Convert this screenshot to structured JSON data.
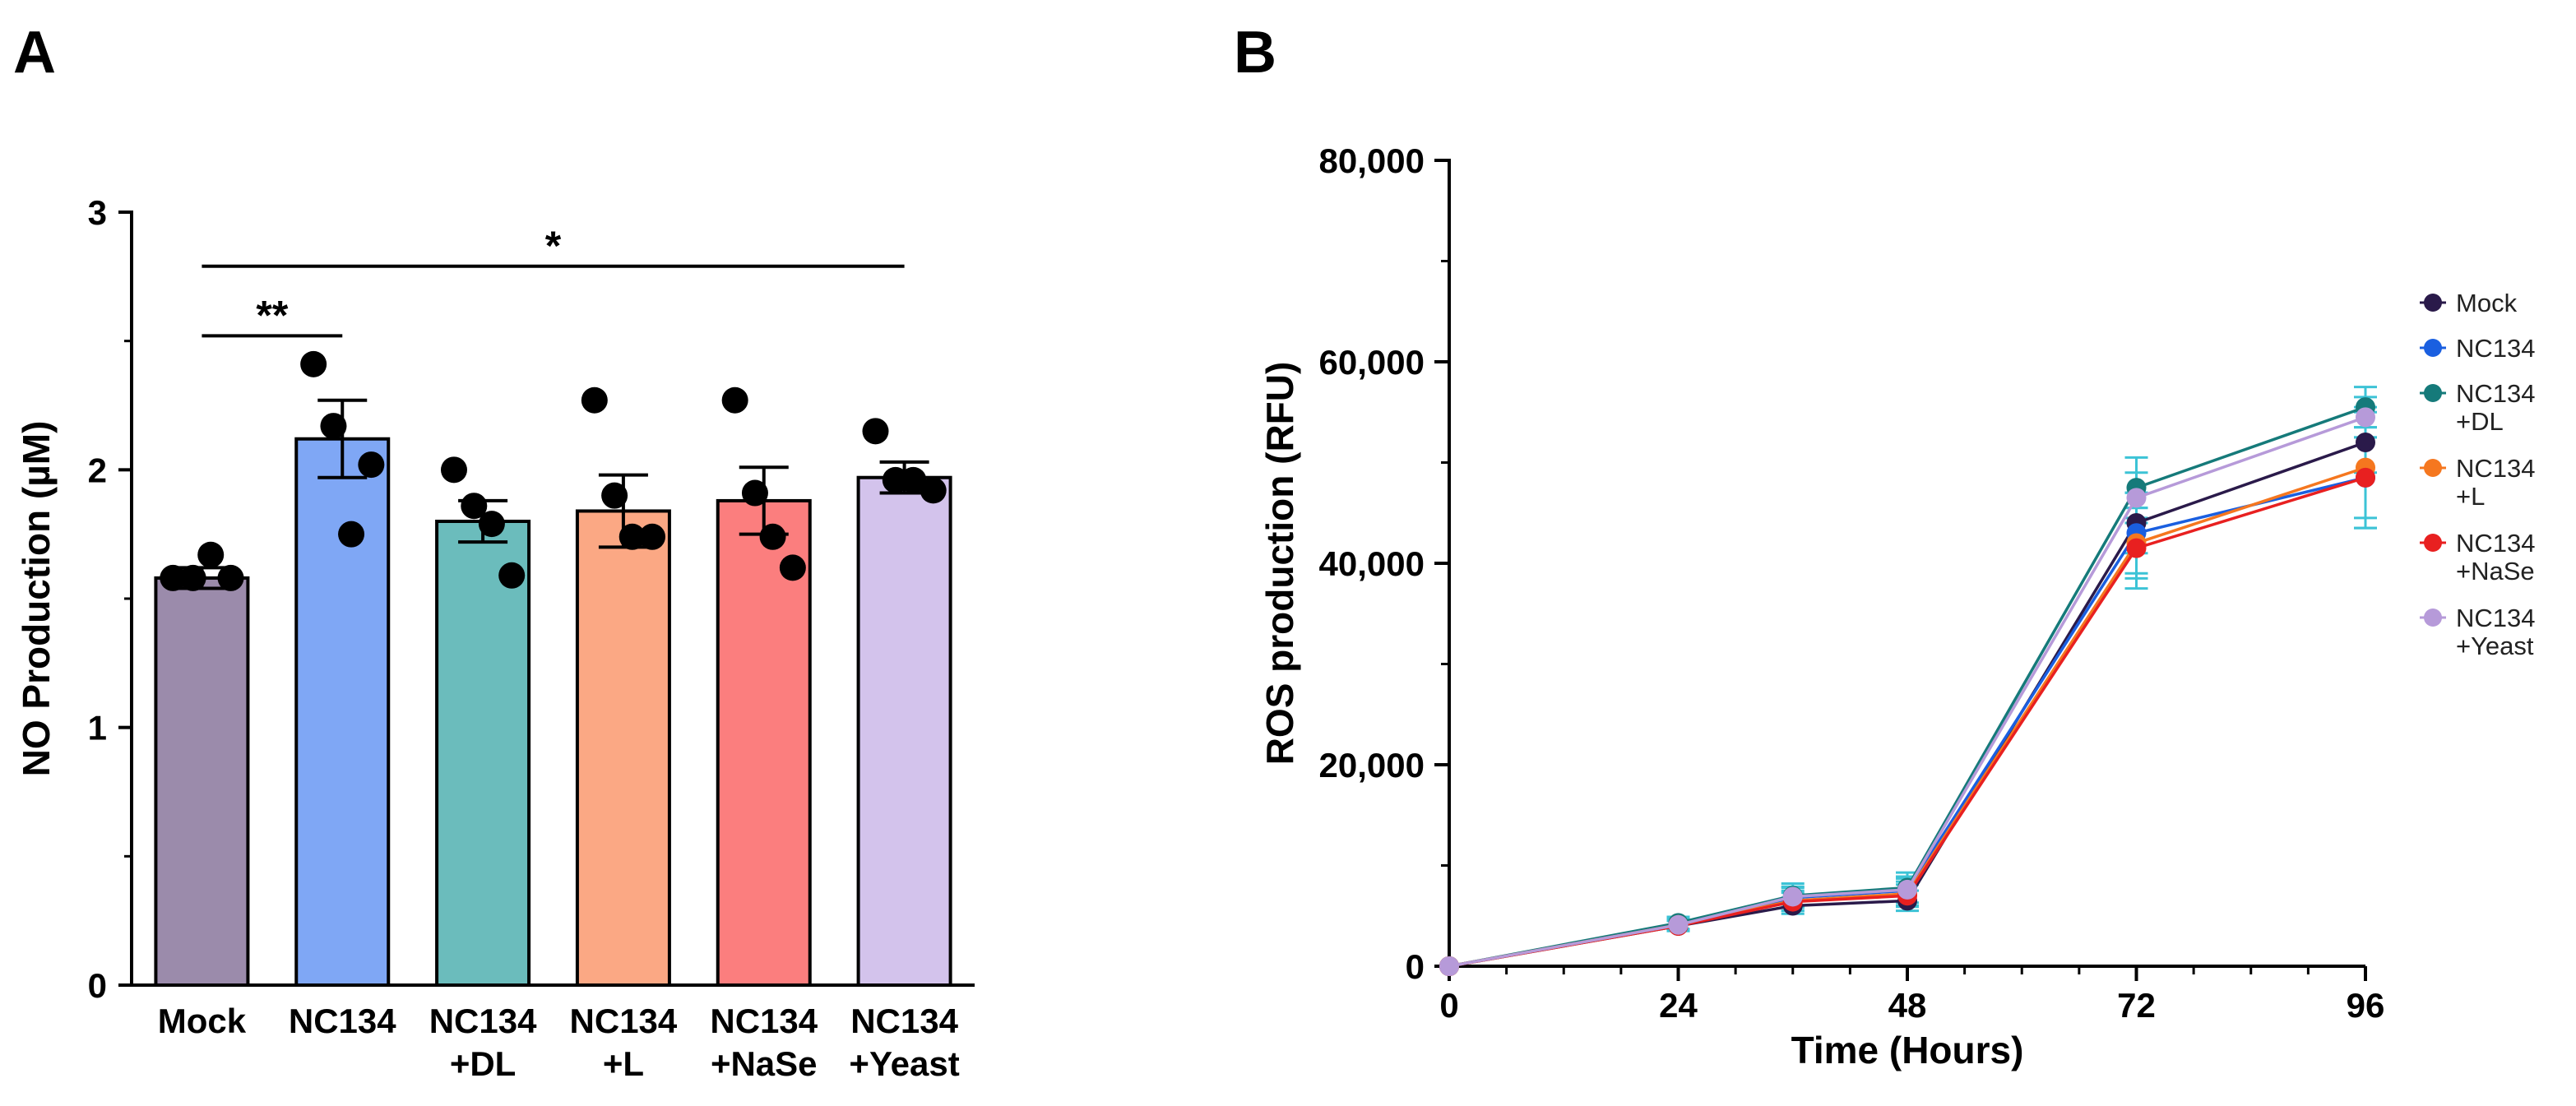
{
  "panels": {
    "a_label": "A",
    "b_label": "B"
  },
  "chart_data": [
    {
      "type": "bar",
      "ylabel": "NO Production (µM)",
      "xlabel": "",
      "ylim": [
        0,
        3
      ],
      "yticks": [
        "0",
        "1",
        "2",
        "3"
      ],
      "categories": [
        [
          "Mock"
        ],
        [
          "NC134"
        ],
        [
          "NC134",
          "+DL"
        ],
        [
          "NC134",
          "+L"
        ],
        [
          "NC134",
          "+NaSe"
        ],
        [
          "NC134",
          "+Yeast"
        ]
      ],
      "values": [
        1.58,
        2.12,
        1.8,
        1.84,
        1.88,
        1.97
      ],
      "sem": [
        0.04,
        0.15,
        0.08,
        0.14,
        0.13,
        0.06
      ],
      "points": [
        [
          1.58,
          1.58,
          1.67,
          1.58
        ],
        [
          2.41,
          2.17,
          1.75,
          2.02
        ],
        [
          2.0,
          1.86,
          1.79,
          1.59
        ],
        [
          2.27,
          1.9,
          1.74,
          1.74
        ],
        [
          2.27,
          1.91,
          1.74,
          1.62
        ],
        [
          2.15,
          1.96,
          1.96,
          1.92
        ]
      ],
      "colors": [
        "#9b8bab",
        "#7fa7f5",
        "#6bbcbc",
        "#fba884",
        "#fb7e7e",
        "#d3c3ec"
      ],
      "annotations": [
        {
          "from": 0,
          "to": 1,
          "label": "**",
          "level": 2.52
        },
        {
          "from": 0,
          "to": 5,
          "label": "*",
          "level": 2.79
        }
      ]
    },
    {
      "type": "line",
      "xlabel": "Time (Hours)",
      "ylabel": "ROS production (RFU)",
      "xlim": [
        0,
        96
      ],
      "ylim": [
        0,
        80000
      ],
      "xticks": [
        "0",
        "24",
        "48",
        "72",
        "96"
      ],
      "yticks": [
        "0",
        "20,000",
        "40,000",
        "60,000",
        "80,000"
      ],
      "x": [
        0,
        24,
        36,
        48,
        72,
        96
      ],
      "legend_position": "right",
      "series": [
        {
          "name": "Mock",
          "color": "#2a1a4a",
          "values": [
            0,
            4000,
            6000,
            6500,
            44000,
            52000
          ],
          "err": [
            0,
            500,
            800,
            1000,
            3000,
            3000
          ]
        },
        {
          "name": "NC134",
          "color": "#1a5fe0",
          "values": [
            0,
            4200,
            6800,
            7500,
            43000,
            48500
          ],
          "err": [
            0,
            600,
            1000,
            1200,
            4000,
            4000
          ]
        },
        {
          "name": "NC134 +DL",
          "color": "#157a7a",
          "values": [
            0,
            4300,
            7000,
            7800,
            47500,
            55500
          ],
          "err": [
            0,
            600,
            1200,
            1500,
            3000,
            2000
          ]
        },
        {
          "name": "NC134 +L",
          "color": "#f5771f",
          "values": [
            0,
            4100,
            6500,
            7200,
            42000,
            49500
          ],
          "err": [
            0,
            500,
            1000,
            1200,
            3500,
            6000
          ]
        },
        {
          "name": "NC134 +NaSe",
          "color": "#e82020",
          "values": [
            0,
            4000,
            6400,
            7000,
            41500,
            48500
          ],
          "err": [
            0,
            500,
            900,
            1100,
            4000,
            5000
          ]
        },
        {
          "name": "NC134 +Yeast",
          "color": "#b69ad9",
          "values": [
            0,
            4100,
            6900,
            7600,
            46500,
            54500
          ],
          "err": [
            0,
            500,
            1000,
            1300,
            2500,
            2000
          ]
        }
      ],
      "error_bar_color": "#3cc3d6"
    }
  ]
}
